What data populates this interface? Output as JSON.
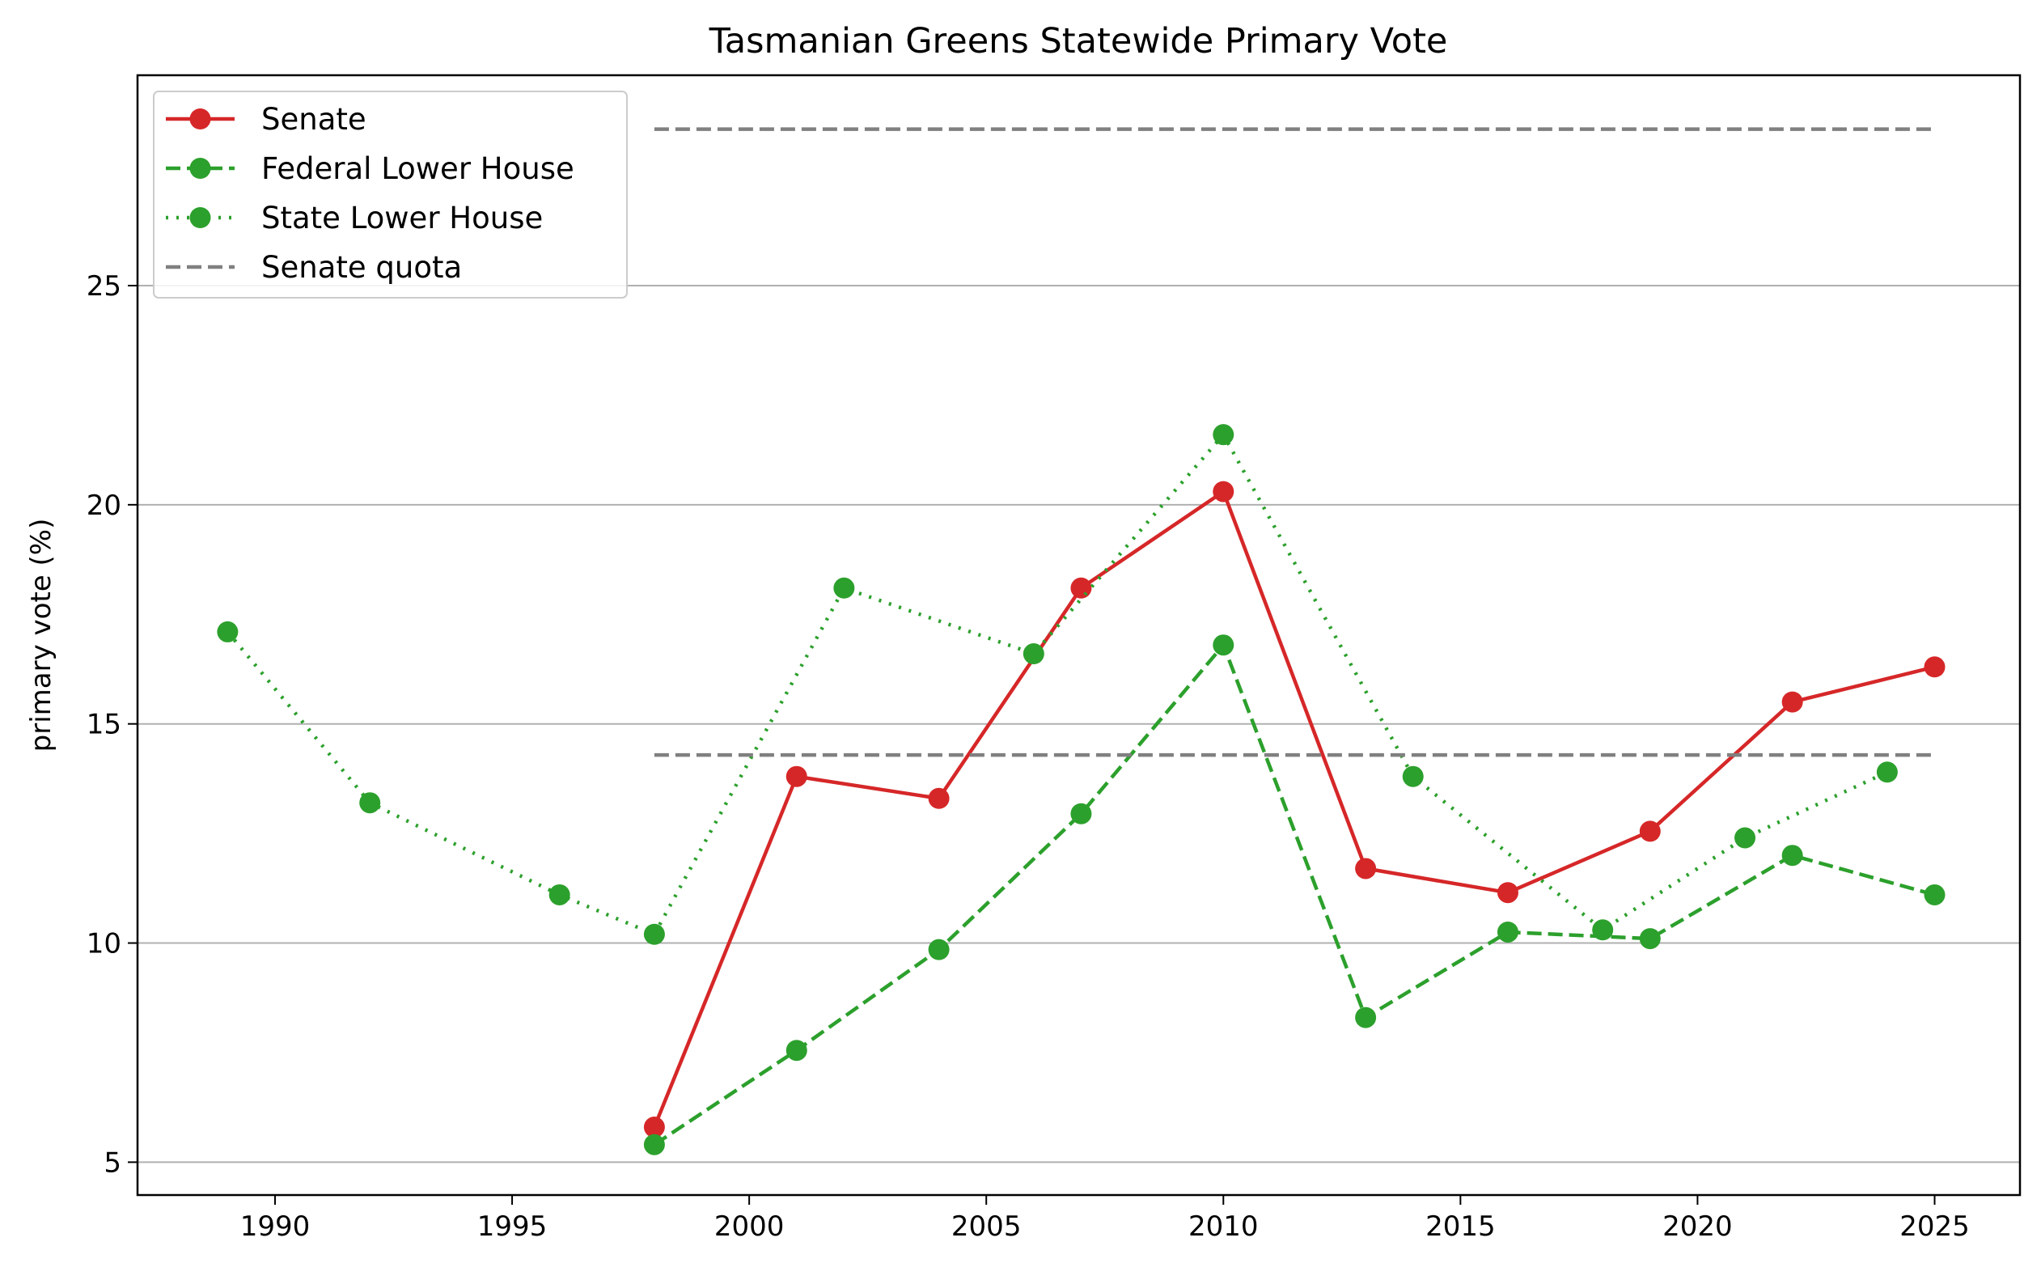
{
  "chart_data": {
    "type": "line",
    "title": "Tasmanian Greens Statewide Primary Vote",
    "xlabel": "",
    "ylabel": "primary vote (%)",
    "xlim": [
      1987.1,
      2026.8
    ],
    "ylim": [
      4.25,
      29.8
    ],
    "xticks": [
      1990,
      1995,
      2000,
      2005,
      2010,
      2015,
      2020,
      2025
    ],
    "yticks": [
      5,
      10,
      15,
      20,
      25
    ],
    "grid": "horizontal",
    "legend_position": "top-left",
    "series": [
      {
        "name": "Senate",
        "color": "#d62728",
        "style": "solid",
        "marker": "circle",
        "x": [
          1998,
          2001,
          2004,
          2007,
          2010,
          2013,
          2016,
          2019,
          2022,
          2025
        ],
        "y": [
          5.8,
          13.8,
          13.3,
          18.1,
          20.3,
          11.7,
          11.15,
          12.55,
          15.5,
          16.3
        ]
      },
      {
        "name": "Federal Lower House",
        "color": "#2ca02c",
        "style": "dashed",
        "marker": "circle",
        "x": [
          1998,
          2001,
          2004,
          2007,
          2010,
          2013,
          2016,
          2019,
          2022,
          2025
        ],
        "y": [
          5.4,
          7.55,
          9.85,
          12.95,
          16.8,
          8.3,
          10.25,
          10.1,
          12.0,
          11.1
        ]
      },
      {
        "name": "State Lower House",
        "color": "#2ca02c",
        "style": "dotted",
        "marker": "circle",
        "x": [
          1989,
          1992,
          1996,
          1998,
          2002,
          2006,
          2010,
          2014,
          2018,
          2021,
          2024
        ],
        "y": [
          17.1,
          13.2,
          11.1,
          10.2,
          18.1,
          16.6,
          21.6,
          13.8,
          10.3,
          12.4,
          13.9
        ]
      },
      {
        "name": "Senate quota",
        "color": "#808080",
        "style": "dashed",
        "marker": "none",
        "segments": [
          {
            "x": [
              1998,
              2025
            ],
            "y": [
              28.57,
              28.57
            ]
          },
          {
            "x": [
              1998,
              2025
            ],
            "y": [
              14.29,
              14.29
            ]
          }
        ]
      }
    ]
  }
}
